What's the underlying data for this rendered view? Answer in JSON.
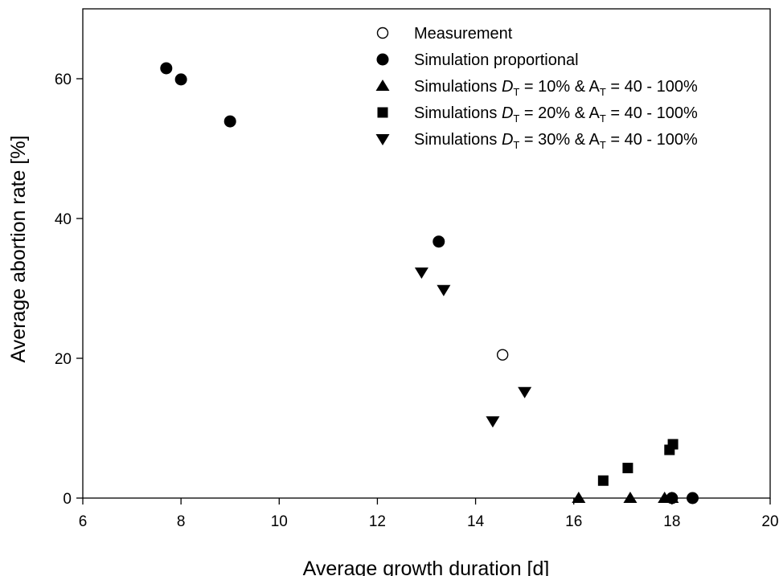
{
  "chart_data": {
    "type": "scatter",
    "xlabel": "Average growth duration [d]",
    "ylabel": "Average abortion rate [%]",
    "xlim": [
      6,
      20
    ],
    "ylim": [
      0,
      70
    ],
    "x_ticks": [
      6,
      8,
      10,
      12,
      14,
      16,
      18,
      20
    ],
    "y_ticks": [
      0,
      20,
      40,
      60
    ],
    "grid": false,
    "legend_position": "top-right",
    "series": [
      {
        "name": "Measurement",
        "marker": "open-circle",
        "color": "#000000",
        "legend": {
          "prefix": "Measurement",
          "d_sub": "",
          "middle": "",
          "a_sub": "",
          "suffix": ""
        },
        "points": [
          [
            14.55,
            20.5
          ]
        ]
      },
      {
        "name": "Simulation proportional",
        "marker": "circle",
        "color": "#000000",
        "legend": {
          "prefix": "Simulation proportional",
          "d_sub": "",
          "middle": "",
          "a_sub": "",
          "suffix": ""
        },
        "points": [
          [
            7.7,
            61.5
          ],
          [
            8.0,
            59.9
          ],
          [
            9.0,
            53.9
          ],
          [
            13.25,
            36.7
          ],
          [
            18.0,
            0.0
          ],
          [
            18.42,
            0.0
          ]
        ]
      },
      {
        "name": "Simulations DT = 10% & AT = 40 - 100%",
        "marker": "triangle-up",
        "color": "#000000",
        "legend": {
          "prefix": "Simulations ",
          "d_sub": "T",
          "middle": " = 10% & A",
          "a_sub": "T",
          "suffix": " = 40 - 100%"
        },
        "points": [
          [
            16.1,
            0.0
          ],
          [
            17.15,
            0.0
          ],
          [
            17.85,
            0.0
          ],
          [
            18.0,
            0.0
          ]
        ]
      },
      {
        "name": "Simulations DT = 20% & AT = 40 - 100%",
        "marker": "square",
        "color": "#000000",
        "legend": {
          "prefix": "Simulations ",
          "d_sub": "T",
          "middle": " = 20% & A",
          "a_sub": "T",
          "suffix": " = 40 - 100%"
        },
        "points": [
          [
            16.6,
            2.5
          ],
          [
            17.1,
            4.3
          ],
          [
            17.95,
            6.9
          ],
          [
            18.02,
            7.7
          ]
        ]
      },
      {
        "name": "Simulations DT = 30% & AT = 40 - 100%",
        "marker": "triangle-down",
        "color": "#000000",
        "legend": {
          "prefix": "Simulations ",
          "d_sub": "T",
          "middle": " = 30% & A",
          "a_sub": "T",
          "suffix": " = 40 - 100%"
        },
        "points": [
          [
            12.9,
            32.3
          ],
          [
            13.35,
            29.8
          ],
          [
            14.35,
            11.0
          ],
          [
            15.0,
            15.2
          ]
        ]
      }
    ]
  }
}
